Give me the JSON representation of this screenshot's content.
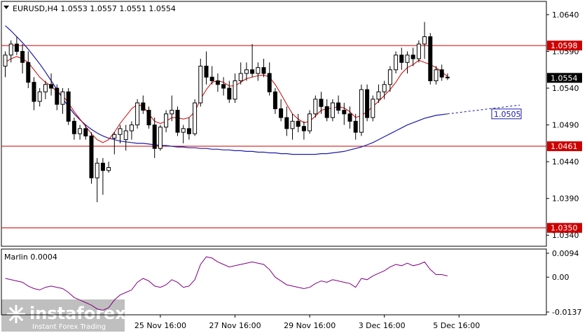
{
  "header": {
    "symbol_line": "EURUSD,H4  1.0553 1.0557 1.0551 1.0554"
  },
  "indicator": {
    "label": "Marlin 0.0004",
    "ticks": [
      "0.0094",
      "0.00",
      "-0.0137"
    ],
    "range": [
      -0.0137,
      0.0094
    ]
  },
  "watermark": {
    "brand": "instaforex",
    "tagline": "Instant Forex Trading"
  },
  "colors": {
    "candle": "#000000",
    "fast_ma": "#cc0000",
    "slow_ma": "#1a1aa8",
    "level_line": "#cc0000",
    "oscillator": "#800080",
    "grid": "#c8c8c8"
  },
  "chart_data": {
    "type": "candlestick",
    "symbol": "EURUSD",
    "timeframe": "H4",
    "ylim": [
      1.0325,
      1.0658
    ],
    "y_ticks": [
      1.064,
      1.059,
      1.054,
      1.049,
      1.044,
      1.039,
      1.034
    ],
    "x_ticks": [
      "25 Nov 16:00",
      "27 Nov 16:00",
      "29 Nov 16:00",
      "3 Dec 16:00",
      "5 Dec 16:00"
    ],
    "x_tick_index": [
      27,
      40,
      53,
      66,
      79
    ],
    "levels": [
      {
        "value": 1.0598,
        "label": "1.0598"
      },
      {
        "value": 1.0461,
        "label": "1.0461"
      },
      {
        "value": 1.035,
        "label": "1.0350"
      }
    ],
    "current_price": {
      "value": 1.0554,
      "label": "1.0554"
    },
    "ma_label": {
      "value": 1.0505,
      "label": "1.0505"
    },
    "candles": [
      [
        1.057,
        1.059,
        1.0555,
        1.0585
      ],
      [
        1.0585,
        1.0605,
        1.0575,
        1.06
      ],
      [
        1.06,
        1.061,
        1.0585,
        1.059
      ],
      [
        1.059,
        1.06,
        1.056,
        1.0575
      ],
      [
        1.0575,
        1.059,
        1.054,
        1.0548
      ],
      [
        1.0548,
        1.0555,
        1.051,
        1.0522
      ],
      [
        1.0522,
        1.054,
        1.0515,
        1.0535
      ],
      [
        1.0535,
        1.055,
        1.0525,
        1.0545
      ],
      [
        1.0545,
        1.056,
        1.053,
        1.054
      ],
      [
        1.054,
        1.0545,
        1.051,
        1.0518
      ],
      [
        1.0518,
        1.054,
        1.0505,
        1.0535
      ],
      [
        1.0535,
        1.054,
        1.049,
        1.0495
      ],
      [
        1.0495,
        1.05,
        1.047,
        1.0478
      ],
      [
        1.0478,
        1.049,
        1.047,
        1.0485
      ],
      [
        1.0485,
        1.049,
        1.047,
        1.0475
      ],
      [
        1.0475,
        1.048,
        1.041,
        1.0418
      ],
      [
        1.0418,
        1.0445,
        1.0385,
        1.0438
      ],
      [
        1.0438,
        1.0445,
        1.0395,
        1.0428
      ],
      [
        1.0428,
        1.044,
        1.0425,
        1.0432
      ],
      [
        1.0472,
        1.048,
        1.045,
        1.0477
      ],
      [
        1.0477,
        1.049,
        1.0465,
        1.0485
      ],
      [
        1.047,
        1.049,
        1.0455,
        1.0482
      ],
      [
        1.0482,
        1.0495,
        1.047,
        1.049
      ],
      [
        1.049,
        1.0525,
        1.0485,
        1.052
      ],
      [
        1.052,
        1.053,
        1.0505,
        1.051
      ],
      [
        1.051,
        1.0515,
        1.0485,
        1.049
      ],
      [
        1.049,
        1.05,
        1.0445,
        1.0458
      ],
      [
        1.0458,
        1.049,
        1.0455,
        1.0487
      ],
      [
        1.0487,
        1.051,
        1.048,
        1.0505
      ],
      [
        1.0505,
        1.053,
        1.0495,
        1.051
      ],
      [
        1.051,
        1.0515,
        1.0475,
        1.048
      ],
      [
        1.048,
        1.049,
        1.0465,
        1.0485
      ],
      [
        1.0485,
        1.05,
        1.047,
        1.0478
      ],
      [
        1.0478,
        1.0525,
        1.0475,
        1.052
      ],
      [
        1.052,
        1.058,
        1.0515,
        1.057
      ],
      [
        1.057,
        1.059,
        1.0545,
        1.0555
      ],
      [
        1.0555,
        1.057,
        1.0545,
        1.055
      ],
      [
        1.055,
        1.056,
        1.0535,
        1.0545
      ],
      [
        1.0545,
        1.0555,
        1.053,
        1.054
      ],
      [
        1.054,
        1.055,
        1.052,
        1.0525
      ],
      [
        1.0525,
        1.056,
        1.052,
        1.055
      ],
      [
        1.055,
        1.0575,
        1.0545,
        1.056
      ],
      [
        1.056,
        1.0575,
        1.055,
        1.0565
      ],
      [
        1.0565,
        1.06,
        1.0555,
        1.056
      ],
      [
        1.056,
        1.0575,
        1.055,
        1.0568
      ],
      [
        1.0568,
        1.058,
        1.0555,
        1.056
      ],
      [
        1.056,
        1.0575,
        1.053,
        1.0535
      ],
      [
        1.0535,
        1.054,
        1.0505,
        1.0512
      ],
      [
        1.0512,
        1.0525,
        1.0495,
        1.05
      ],
      [
        1.05,
        1.0515,
        1.0475,
        1.0485
      ],
      [
        1.0485,
        1.0505,
        1.047,
        1.0495
      ],
      [
        1.0495,
        1.0505,
        1.048,
        1.0488
      ],
      [
        1.0488,
        1.0495,
        1.047,
        1.0482
      ],
      [
        1.0482,
        1.051,
        1.0478,
        1.0505
      ],
      [
        1.0505,
        1.053,
        1.05,
        1.0525
      ],
      [
        1.0525,
        1.0535,
        1.0505,
        1.0515
      ],
      [
        1.0515,
        1.0525,
        1.0495,
        1.05
      ],
      [
        1.05,
        1.0525,
        1.0495,
        1.052
      ],
      [
        1.052,
        1.053,
        1.0505,
        1.051
      ],
      [
        1.051,
        1.052,
        1.049,
        1.0505
      ],
      [
        1.0505,
        1.0515,
        1.0485,
        1.0495
      ],
      [
        1.0495,
        1.0505,
        1.047,
        1.048
      ],
      [
        1.048,
        1.0545,
        1.0475,
        1.0538
      ],
      [
        1.0538,
        1.0545,
        1.0495,
        1.05
      ],
      [
        1.05,
        1.053,
        1.0495,
        1.0525
      ],
      [
        1.0525,
        1.0545,
        1.052,
        1.0535
      ],
      [
        1.0535,
        1.055,
        1.0525,
        1.0545
      ],
      [
        1.0545,
        1.057,
        1.0535,
        1.0565
      ],
      [
        1.0565,
        1.059,
        1.056,
        1.0585
      ],
      [
        1.0585,
        1.0595,
        1.0565,
        1.0575
      ],
      [
        1.0575,
        1.059,
        1.056,
        1.0585
      ],
      [
        1.0585,
        1.0595,
        1.057,
        1.058
      ],
      [
        1.058,
        1.0605,
        1.0575,
        1.06
      ],
      [
        1.06,
        1.063,
        1.058,
        1.061
      ],
      [
        1.061,
        1.0615,
        1.0545,
        1.055
      ],
      [
        1.055,
        1.057,
        1.0545,
        1.0565
      ],
      [
        1.0565,
        1.0572,
        1.055,
        1.0555
      ],
      [
        1.0555,
        1.056,
        1.0551,
        1.0554
      ]
    ],
    "fast_ma": [
      1.0575,
      1.058,
      1.0583,
      1.058,
      1.0575,
      1.0565,
      1.0555,
      1.0548,
      1.0543,
      1.0535,
      1.053,
      1.052,
      1.0508,
      1.0498,
      1.0488,
      1.0478,
      1.047,
      1.0466,
      1.047,
      1.048,
      1.0492,
      1.0502,
      1.0512,
      1.0518,
      1.0515,
      1.0505,
      1.0495,
      1.0492,
      1.0495,
      1.05,
      1.05,
      1.0498,
      1.05,
      1.0508,
      1.0525,
      1.0538,
      1.0548,
      1.055,
      1.0548,
      1.0543,
      1.0543,
      1.0548,
      1.0553,
      1.0555,
      1.0557,
      1.0558,
      1.0555,
      1.0545,
      1.0532,
      1.0518,
      1.0505,
      1.0498,
      1.0493,
      1.0495,
      1.0502,
      1.051,
      1.0512,
      1.0513,
      1.0515,
      1.0513,
      1.0508,
      1.05,
      1.0503,
      1.0508,
      1.0515,
      1.0522,
      1.053,
      1.0538,
      1.0548,
      1.056,
      1.0568,
      1.0572,
      1.0578,
      1.0575,
      1.0572,
      1.0568,
      1.0562,
      1.0556
    ],
    "slow_ma": [
      1.0625,
      1.0618,
      1.061,
      1.0602,
      1.0593,
      1.0583,
      1.0573,
      1.0562,
      1.055,
      1.0538,
      1.0526,
      1.0515,
      1.0505,
      1.0497,
      1.049,
      1.0484,
      1.0479,
      1.0475,
      1.0472,
      1.047,
      1.0468,
      1.0467,
      1.0466,
      1.0465,
      1.0465,
      1.0464,
      1.0463,
      1.0462,
      1.0462,
      1.0461,
      1.046,
      1.046,
      1.0459,
      1.0459,
      1.0458,
      1.0458,
      1.0457,
      1.0457,
      1.0456,
      1.0456,
      1.0455,
      1.0455,
      1.0454,
      1.0454,
      1.0453,
      1.0453,
      1.0452,
      1.0452,
      1.0451,
      1.0451,
      1.045,
      1.045,
      1.045,
      1.045,
      1.045,
      1.0451,
      1.0451,
      1.0452,
      1.0453,
      1.0454,
      1.0456,
      1.0458,
      1.046,
      1.0463,
      1.0466,
      1.047,
      1.0474,
      1.0478,
      1.0482,
      1.0486,
      1.049,
      1.0493,
      1.0496,
      1.0499,
      1.0501,
      1.0503,
      1.0504,
      1.0505
    ],
    "oscillator": [
      -0.0005,
      -0.001,
      -0.0015,
      -0.002,
      -0.0035,
      -0.0045,
      -0.005,
      -0.004,
      -0.0035,
      -0.004,
      -0.0045,
      -0.006,
      -0.008,
      -0.009,
      -0.01,
      -0.011,
      -0.0125,
      -0.013,
      -0.012,
      -0.009,
      -0.007,
      -0.006,
      -0.005,
      -0.002,
      -0.0005,
      -0.0015,
      -0.0035,
      -0.004,
      -0.003,
      -0.001,
      -0.002,
      -0.004,
      -0.0035,
      -0.001,
      0.005,
      0.008,
      0.0075,
      0.006,
      0.005,
      0.004,
      0.0045,
      0.005,
      0.0055,
      0.006,
      0.0055,
      0.005,
      0.003,
      0.0,
      -0.0015,
      -0.003,
      -0.0035,
      -0.004,
      -0.0045,
      -0.004,
      -0.0025,
      -0.0015,
      -0.002,
      -0.001,
      -0.0015,
      -0.002,
      -0.0025,
      -0.004,
      -0.0005,
      -0.001,
      0.0005,
      0.0015,
      0.0025,
      0.004,
      0.005,
      0.0045,
      0.0055,
      0.0045,
      0.005,
      0.006,
      0.003,
      0.001,
      0.001,
      0.0005
    ]
  }
}
